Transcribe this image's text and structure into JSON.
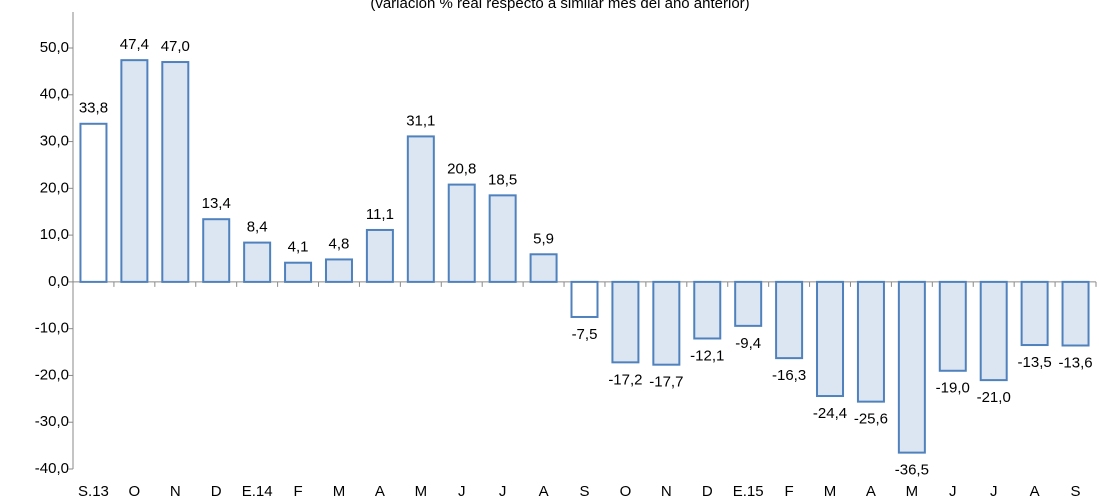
{
  "chart_data": {
    "type": "bar",
    "subtitle": "(variación % real respecto a similar mes del año anterior)",
    "categories": [
      "S.13",
      "O",
      "N",
      "D",
      "E.14",
      "F",
      "M",
      "A",
      "M",
      "J",
      "J",
      "A",
      "S",
      "O",
      "N",
      "D",
      "E.15",
      "F",
      "M",
      "A",
      "M",
      "J",
      "J",
      "A",
      "S"
    ],
    "values": [
      33.8,
      47.4,
      47.0,
      13.4,
      8.4,
      4.1,
      4.8,
      11.1,
      31.1,
      20.8,
      18.5,
      5.9,
      -7.5,
      -17.2,
      -17.7,
      -12.1,
      -9.4,
      -16.3,
      -24.4,
      -25.6,
      -36.5,
      -19.0,
      -21.0,
      -13.5,
      -13.6
    ],
    "value_labels": [
      "33,8",
      "47,4",
      "47,0",
      "13,4",
      "8,4",
      "4,1",
      "4,8",
      "11,1",
      "31,1",
      "20,8",
      "18,5",
      "5,9",
      "-7,5",
      "-17,2",
      "-17,7",
      "-12,1",
      "-9,4",
      "-16,3",
      "-24,4",
      "-25,6",
      "-36,5",
      "-19,0",
      "-21,0",
      "-13,5",
      "-13,6"
    ],
    "colors": [
      "#ffffff",
      "#dce6f2",
      "#dce6f2",
      "#dce6f2",
      "#dce6f2",
      "#dce6f2",
      "#dce6f2",
      "#dce6f2",
      "#dce6f2",
      "#dce6f2",
      "#dce6f2",
      "#dce6f2",
      "#ffffff",
      "#dce6f2",
      "#dce6f2",
      "#dce6f2",
      "#dce6f2",
      "#dce6f2",
      "#dce6f2",
      "#dce6f2",
      "#dce6f2",
      "#dce6f2",
      "#dce6f2",
      "#dce6f2",
      "#dce6f2"
    ],
    "border_color": "#4f81bd",
    "ylim": [
      -40,
      50
    ],
    "yticks": [
      {
        "value": -40,
        "label": "-40,0"
      },
      {
        "value": -30,
        "label": "-30,0"
      },
      {
        "value": -20,
        "label": "-20,0"
      },
      {
        "value": -10,
        "label": "-10,0"
      },
      {
        "value": 0,
        "label": "0,0"
      },
      {
        "value": 10,
        "label": "10,0"
      },
      {
        "value": 20,
        "label": "20,0"
      },
      {
        "value": 30,
        "label": "30,0"
      },
      {
        "value": 40,
        "label": "40,0"
      },
      {
        "value": 50,
        "label": "50,0"
      }
    ]
  }
}
